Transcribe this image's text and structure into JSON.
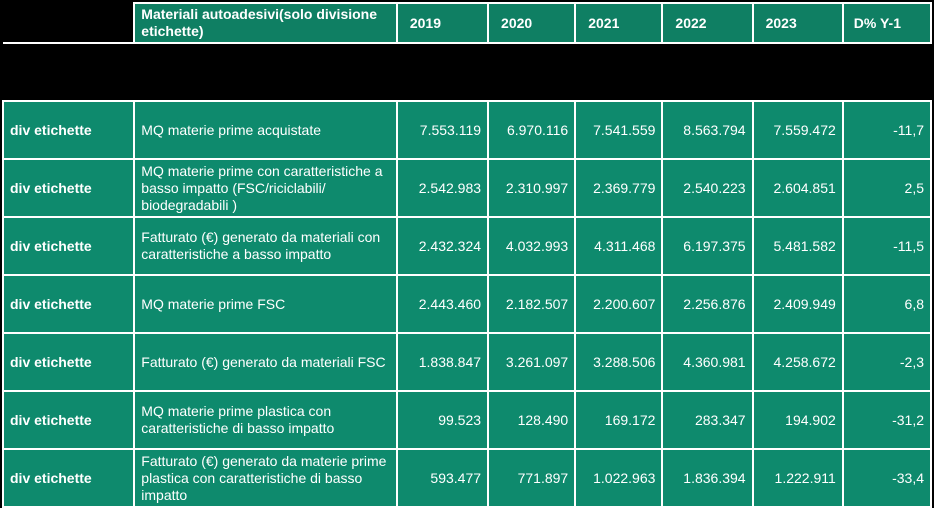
{
  "table": {
    "header": {
      "corner": "",
      "metric": "Materiali autoadesivi(solo divisione etichette)",
      "years": [
        "2019",
        "2020",
        "2021",
        "2022",
        "2023"
      ],
      "delta": "D% Y-1"
    },
    "rows": [
      {
        "division": "div etichette",
        "metric": "MQ materie prime acquistate",
        "values": [
          "7.553.119",
          "6.970.116",
          "7.541.559",
          "8.563.794",
          "7.559.472"
        ],
        "delta": "-11,7"
      },
      {
        "division": "div etichette",
        "metric": "MQ materie prime con caratteristiche a basso impatto (FSC/riciclabili/ biodegradabili )",
        "values": [
          "2.542.983",
          "2.310.997",
          "2.369.779",
          "2.540.223",
          "2.604.851"
        ],
        "delta": "2,5"
      },
      {
        "division": "div etichette",
        "metric": "Fatturato (€) generato da materiali con caratteristiche a basso impatto",
        "values": [
          "2.432.324",
          "4.032.993",
          "4.311.468",
          "6.197.375",
          "5.481.582"
        ],
        "delta": "-11,5"
      },
      {
        "division": "div etichette",
        "metric": "MQ materie prime FSC",
        "values": [
          "2.443.460",
          "2.182.507",
          "2.200.607",
          "2.256.876",
          "2.409.949"
        ],
        "delta": "6,8"
      },
      {
        "division": "div etichette",
        "metric": "Fatturato (€) generato da materiali FSC",
        "values": [
          "1.838.847",
          "3.261.097",
          "3.288.506",
          "4.360.981",
          "4.258.672"
        ],
        "delta": "-2,3"
      },
      {
        "division": "div etichette",
        "metric": "MQ materie prime plastica con caratteristiche di basso impatto",
        "values": [
          "99.523",
          "128.490",
          "169.172",
          "283.347",
          "194.902"
        ],
        "delta": "-31,2"
      },
      {
        "division": "div etichette",
        "metric": "Fatturato (€) generato da materie prime plastica con caratteristiche di basso impatto",
        "values": [
          "593.477",
          "771.897",
          "1.022.963",
          "1.836.394",
          "1.222.911"
        ],
        "delta": "-33,4"
      }
    ]
  }
}
